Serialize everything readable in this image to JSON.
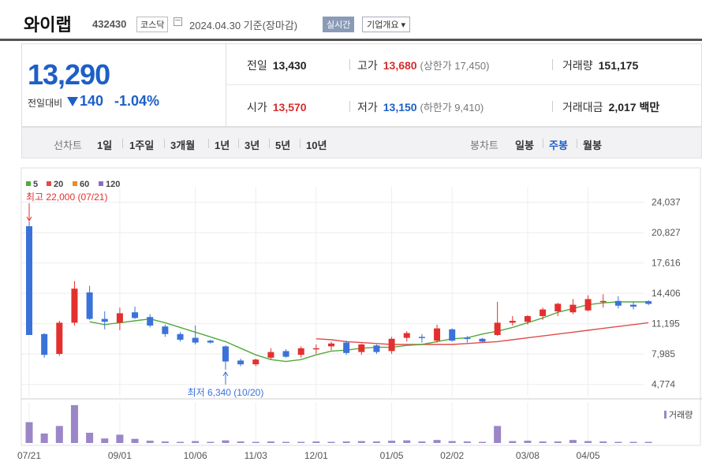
{
  "stock": {
    "name": "와이랩",
    "code": "432430",
    "market": "코스닥",
    "date_label": "2024.04.30 기준(장마감)",
    "realtime_label": "실시간",
    "company_overview_label": "기업개요 ▾"
  },
  "quote": {
    "price": "13,290",
    "change_label": "전일대비",
    "change": "140",
    "change_pct": "-1.04%",
    "prev_close_label": "전일",
    "prev_close": "13,430",
    "high_label": "고가",
    "high": "13,680",
    "upper_limit": "(상한가 17,450)",
    "volume_label": "거래량",
    "volume": "151,175",
    "open_label": "시가",
    "open": "13,570",
    "low_label": "저가",
    "low": "13,150",
    "lower_limit": "(하한가 9,410)",
    "trade_value_label": "거래대금",
    "trade_value": "2,017 백만"
  },
  "period_tabs": {
    "label": "선차트",
    "items": [
      "1일",
      "1주일",
      "3개월",
      "1년",
      "3년",
      "5년",
      "10년"
    ]
  },
  "candle_tabs": {
    "label": "봉차트",
    "items": [
      "일봉",
      "주봉",
      "월봉"
    ],
    "active": "주봉"
  },
  "colors": {
    "up": "#e3302f",
    "down": "#3b72d9",
    "ma5": "#52a93b",
    "ma20": "#e34a4a",
    "ma60": "#f08a24",
    "ma120": "#8d6cc8",
    "volume": "#9b86c7"
  },
  "chart_data": {
    "type": "candlestick",
    "legend": [
      "5",
      "20",
      "60",
      "120"
    ],
    "y_ticks": [
      "24,037",
      "20,827",
      "17,616",
      "14,406",
      "11,195",
      "7,985",
      "4,774"
    ],
    "ylim": [
      3500,
      25000
    ],
    "x_ticks": [
      "07/21",
      "09/01",
      "10/06",
      "11/03",
      "12/01",
      "01/05",
      "02/02",
      "03/08",
      "04/05"
    ],
    "x_tick_index": [
      0,
      6,
      11,
      15,
      19,
      24,
      28,
      33,
      37
    ],
    "volume_label": "거래량",
    "max_annotation": "최고 22,000 (07/21)",
    "max_index": 0,
    "min_annotation": "최저 6,340 (10/20)",
    "min_index": 13,
    "candles": [
      {
        "o": 21500,
        "h": 22000,
        "l": 10000,
        "c": 10000,
        "v": 55
      },
      {
        "o": 10100,
        "h": 10200,
        "l": 7600,
        "c": 7900,
        "v": 25
      },
      {
        "o": 8000,
        "h": 11500,
        "l": 7800,
        "c": 11300,
        "v": 45
      },
      {
        "o": 11300,
        "h": 15700,
        "l": 11000,
        "c": 14900,
        "v": 100
      },
      {
        "o": 14500,
        "h": 15200,
        "l": 11600,
        "c": 11700,
        "v": 27
      },
      {
        "o": 11700,
        "h": 12500,
        "l": 10600,
        "c": 11400,
        "v": 12
      },
      {
        "o": 11300,
        "h": 12900,
        "l": 10500,
        "c": 12300,
        "v": 22
      },
      {
        "o": 12400,
        "h": 13000,
        "l": 11700,
        "c": 11800,
        "v": 11
      },
      {
        "o": 11900,
        "h": 12200,
        "l": 10800,
        "c": 11000,
        "v": 6
      },
      {
        "o": 10900,
        "h": 11100,
        "l": 9800,
        "c": 10100,
        "v": 4
      },
      {
        "o": 10100,
        "h": 10300,
        "l": 9300,
        "c": 9500,
        "v": 3
      },
      {
        "o": 9700,
        "h": 11000,
        "l": 9000,
        "c": 9200,
        "v": 5
      },
      {
        "o": 9400,
        "h": 9500,
        "l": 9100,
        "c": 9200,
        "v": 3
      },
      {
        "o": 8800,
        "h": 8900,
        "l": 6340,
        "c": 7200,
        "v": 7
      },
      {
        "o": 7300,
        "h": 7500,
        "l": 6700,
        "c": 6900,
        "v": 4
      },
      {
        "o": 6900,
        "h": 7500,
        "l": 6700,
        "c": 7400,
        "v": 3
      },
      {
        "o": 7600,
        "h": 8600,
        "l": 7400,
        "c": 8200,
        "v": 4
      },
      {
        "o": 8300,
        "h": 8500,
        "l": 7600,
        "c": 7700,
        "v": 3
      },
      {
        "o": 7900,
        "h": 8800,
        "l": 7600,
        "c": 8600,
        "v": 3
      },
      {
        "o": 8500,
        "h": 9000,
        "l": 8000,
        "c": 8600,
        "v": 4
      },
      {
        "o": 8800,
        "h": 9300,
        "l": 8400,
        "c": 9100,
        "v": 3
      },
      {
        "o": 9200,
        "h": 9400,
        "l": 7900,
        "c": 8100,
        "v": 4
      },
      {
        "o": 8200,
        "h": 9100,
        "l": 7900,
        "c": 9000,
        "v": 5
      },
      {
        "o": 8900,
        "h": 9000,
        "l": 8000,
        "c": 8200,
        "v": 4
      },
      {
        "o": 8300,
        "h": 9800,
        "l": 8000,
        "c": 9600,
        "v": 6
      },
      {
        "o": 9700,
        "h": 10400,
        "l": 9300,
        "c": 10200,
        "v": 7
      },
      {
        "o": 9800,
        "h": 10100,
        "l": 9200,
        "c": 9700,
        "v": 4
      },
      {
        "o": 9400,
        "h": 11100,
        "l": 9200,
        "c": 10700,
        "v": 8
      },
      {
        "o": 10600,
        "h": 10700,
        "l": 9300,
        "c": 9400,
        "v": 5
      },
      {
        "o": 9700,
        "h": 9900,
        "l": 9200,
        "c": 9600,
        "v": 4
      },
      {
        "o": 9600,
        "h": 9700,
        "l": 9200,
        "c": 9300,
        "v": 3
      },
      {
        "o": 10000,
        "h": 13500,
        "l": 9900,
        "c": 11300,
        "v": 45
      },
      {
        "o": 11300,
        "h": 12000,
        "l": 11000,
        "c": 11500,
        "v": 5
      },
      {
        "o": 11400,
        "h": 12100,
        "l": 11100,
        "c": 12000,
        "v": 6
      },
      {
        "o": 12000,
        "h": 12900,
        "l": 11600,
        "c": 12700,
        "v": 4
      },
      {
        "o": 12500,
        "h": 13400,
        "l": 12000,
        "c": 13300,
        "v": 4
      },
      {
        "o": 12400,
        "h": 13800,
        "l": 12200,
        "c": 13200,
        "v": 8
      },
      {
        "o": 12600,
        "h": 14200,
        "l": 12500,
        "c": 13800,
        "v": 5
      },
      {
        "o": 13500,
        "h": 14300,
        "l": 12900,
        "c": 13600,
        "v": 4
      },
      {
        "o": 13600,
        "h": 14100,
        "l": 12800,
        "c": 13100,
        "v": 3
      },
      {
        "o": 13200,
        "h": 13500,
        "l": 12700,
        "c": 13000,
        "v": 3
      },
      {
        "o": 13570,
        "h": 13680,
        "l": 13150,
        "c": 13290,
        "v": 3
      }
    ],
    "ma5": [
      null,
      null,
      null,
      null,
      11400,
      11100,
      11300,
      11500,
      11700,
      11300,
      10800,
      10300,
      9800,
      9300,
      8600,
      7900,
      7400,
      7200,
      7400,
      7900,
      8300,
      8400,
      8600,
      8700,
      8700,
      8900,
      9000,
      9300,
      9600,
      9700,
      10100,
      10400,
      10800,
      11300,
      11800,
      12400,
      12800,
      13200,
      13400,
      13500,
      13500,
      13500
    ],
    "ma20": [
      null,
      null,
      null,
      null,
      null,
      null,
      null,
      null,
      null,
      null,
      null,
      null,
      null,
      null,
      null,
      null,
      null,
      null,
      null,
      9600,
      9500,
      9300,
      9200,
      9100,
      9000,
      9000,
      9000,
      9000,
      9000,
      9100,
      9200,
      9300,
      9500,
      9700,
      9900,
      10100,
      10300,
      10500,
      10700,
      10900,
      11100,
      11300
    ]
  }
}
